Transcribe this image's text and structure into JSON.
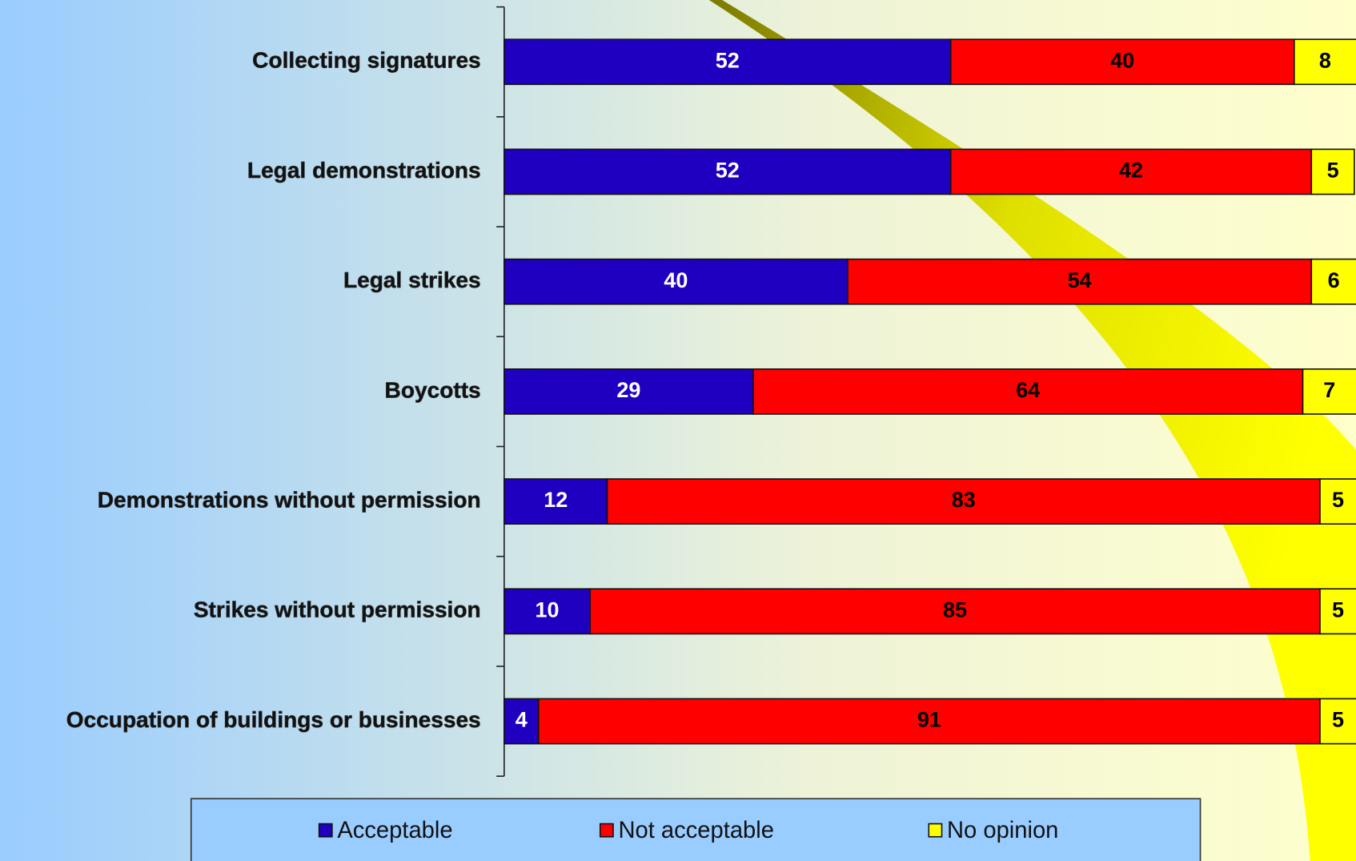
{
  "chart_data": {
    "type": "stacked-barh",
    "categories": [
      "Collecting signatures",
      "Legal demonstrations",
      "Legal strikes",
      "Boycotts",
      "Demonstrations without permission",
      "Strikes without permission",
      "Occupation of buildings or businesses"
    ],
    "series": [
      {
        "name": "Acceptable",
        "color": "#2000c0",
        "label_color": "#ffffff",
        "values": [
          52,
          52,
          40,
          29,
          12,
          10,
          4
        ]
      },
      {
        "name": "Not acceptable",
        "color": "#ff0000",
        "label_color": "#000000",
        "values": [
          40,
          42,
          54,
          64,
          83,
          85,
          91
        ]
      },
      {
        "name": "No opinion",
        "color": "#ffff00",
        "label_color": "#000000",
        "values": [
          8,
          5,
          6,
          7,
          5,
          5,
          5
        ]
      }
    ],
    "xlim": [
      0,
      100
    ],
    "legend": "bottom"
  }
}
